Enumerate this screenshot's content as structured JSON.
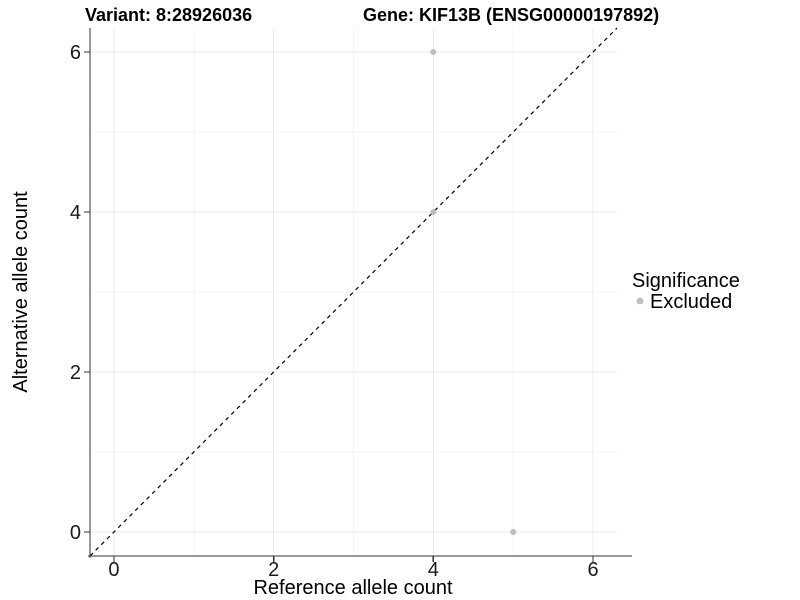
{
  "header": {
    "variant_title": "Variant: 8:28926036",
    "gene_title": "Gene: KIF13B (ENSG00000197892)"
  },
  "axes": {
    "x": {
      "label": "Reference allele count"
    },
    "y": {
      "label": "Alternative allele count"
    }
  },
  "legend": {
    "title": "Significance",
    "items": [
      {
        "label": "Excluded",
        "color": "#bdbdbd"
      }
    ]
  },
  "chart_data": {
    "type": "scatter",
    "title": "Variant: 8:28926036 | Gene: KIF13B (ENSG00000197892)",
    "xlabel": "Reference allele count",
    "ylabel": "Alternative allele count",
    "xlim": [
      -0.3,
      6.3
    ],
    "ylim": [
      -0.3,
      6.3
    ],
    "x_ticks": [
      0,
      2,
      4,
      6
    ],
    "y_ticks": [
      0,
      2,
      4,
      6
    ],
    "grid": {
      "major": [
        0,
        2,
        4,
        6
      ],
      "minor": [
        1,
        3,
        5
      ]
    },
    "legend_position": "right",
    "series": [
      {
        "name": "Excluded",
        "color": "#bdbdbd",
        "points": [
          [
            4,
            6
          ],
          [
            4,
            4
          ],
          [
            5,
            0
          ]
        ]
      }
    ],
    "reference_line": {
      "type": "identity y=x",
      "style": "dashed",
      "color": "#000000"
    }
  },
  "style": {
    "background": "#ffffff",
    "grid_major_color": "#ebebeb",
    "grid_minor_color": "#f4f4f4",
    "axis_line_color": "#333333",
    "tick_mark_color": "#333333",
    "point_color": "#bdbdbd"
  }
}
